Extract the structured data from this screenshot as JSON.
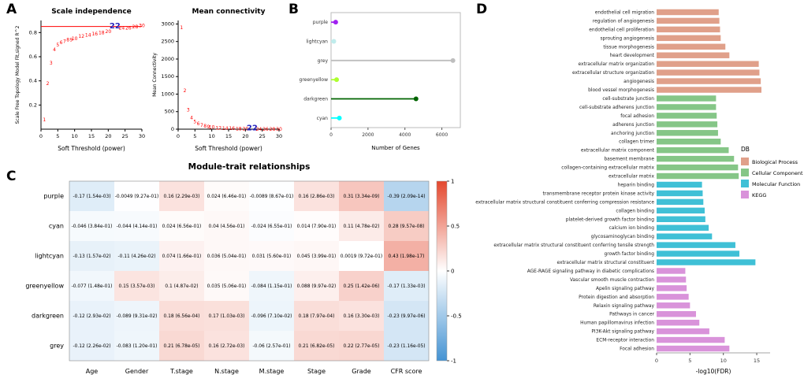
{
  "panels": {
    "a": "A",
    "b": "B",
    "c": "C",
    "d": "D"
  },
  "chart_data": [
    {
      "id": "scale_independence",
      "type": "scatter",
      "title": "Scale independence",
      "xlabel": "Soft Threshold (power)",
      "ylabel": "Scale Free Topology Model Fit,signed R^2",
      "xlim": [
        0,
        30
      ],
      "ylim": [
        0,
        0.9
      ],
      "xticks": [
        0,
        5,
        10,
        15,
        20,
        25,
        30
      ],
      "yticks": [
        0.2,
        0.4,
        0.6,
        0.8
      ],
      "x": [
        1,
        2,
        3,
        4,
        5,
        6,
        7,
        8,
        9,
        10,
        12,
        14,
        16,
        18,
        20,
        22,
        24,
        26,
        28,
        30
      ],
      "y": [
        0.08,
        0.38,
        0.55,
        0.66,
        0.7,
        0.72,
        0.73,
        0.74,
        0.74,
        0.75,
        0.77,
        0.78,
        0.79,
        0.8,
        0.81,
        0.85,
        0.84,
        0.84,
        0.85,
        0.86
      ],
      "point_color": "#FF0000",
      "highlight": 22,
      "highlight_color": "#2323BE",
      "hline": 0.85,
      "hline_color": "#FF0000"
    },
    {
      "id": "mean_connectivity",
      "type": "scatter",
      "title": "Mean connectivity",
      "xlabel": "Soft Threshold (power)",
      "ylabel": "Mean Connectivity",
      "xlim": [
        0,
        30
      ],
      "ylim": [
        0,
        3100
      ],
      "xticks": [
        0,
        5,
        10,
        15,
        20,
        25,
        30
      ],
      "yticks": [
        0,
        500,
        1000,
        1500,
        2000,
        2500,
        3000
      ],
      "x": [
        1,
        2,
        3,
        4,
        5,
        6,
        7,
        8,
        9,
        10,
        12,
        14,
        16,
        18,
        20,
        22,
        24,
        26,
        28,
        30
      ],
      "y": [
        2900,
        1100,
        550,
        330,
        220,
        160,
        120,
        95,
        75,
        60,
        42,
        30,
        22,
        17,
        13,
        12,
        8,
        6,
        5,
        4
      ],
      "point_color": "#FF0000",
      "highlight": 22,
      "highlight_color": "#2323BE",
      "hline": null,
      "hline_color": null
    },
    {
      "id": "module_gene_counts",
      "type": "dotplot",
      "xlabel": "Number of Genes",
      "xlim": [
        0,
        7000
      ],
      "xticks": [
        0,
        2000,
        4000,
        6000
      ],
      "categories": [
        "purple",
        "lightcyan",
        "grey",
        "greenyellow",
        "darkgreen",
        "cyan"
      ],
      "values": [
        250,
        150,
        6600,
        300,
        4600,
        450
      ],
      "colors": [
        "#A020F0",
        "#BFECEC",
        "#BEBEBE",
        "#ADFF2F",
        "#006400",
        "#00FFFF"
      ]
    },
    {
      "id": "module_trait_relationships",
      "type": "heatmap",
      "title": "Module-trait relationships",
      "rows": [
        "purple",
        "cyan",
        "lightcyan",
        "greenyellow",
        "darkgreen",
        "grey"
      ],
      "cols": [
        "Age",
        "Gender",
        "T.stage",
        "N.stage",
        "M.stage",
        "Stage",
        "Grade",
        "CFR score"
      ],
      "values": [
        [
          -0.17,
          -0.0049,
          0.16,
          0.024,
          -0.0089,
          0.16,
          0.31,
          -0.39
        ],
        [
          -0.046,
          -0.044,
          0.024,
          0.04,
          -0.024,
          0.014,
          0.11,
          0.28
        ],
        [
          -0.13,
          -0.11,
          0.074,
          0.036,
          0.031,
          0.045,
          0.0019,
          0.43
        ],
        [
          -0.077,
          0.15,
          0.1,
          0.035,
          -0.084,
          0.088,
          0.25,
          -0.17
        ],
        [
          -0.12,
          -0.089,
          0.18,
          0.17,
          -0.096,
          0.18,
          0.16,
          -0.23
        ],
        [
          -0.12,
          -0.083,
          0.21,
          0.16,
          -0.06,
          0.21,
          0.22,
          -0.23
        ]
      ],
      "pvalues": [
        [
          "1.54e-03",
          "9.27e-01",
          "2.29e-03",
          "6.46e-01",
          "8.67e-01",
          "2.86e-03",
          "3.34e-09",
          "2.09e-14"
        ],
        [
          "3.84e-01",
          "4.14e-01",
          "6.56e-01",
          "4.56e-01",
          "6.55e-01",
          "7.90e-01",
          "4.78e-02",
          "9.57e-08"
        ],
        [
          "1.57e-02",
          "4.26e-02",
          "1.66e-01",
          "5.04e-01",
          "5.60e-01",
          "3.99e-01",
          "9.72e-01",
          "1.98e-17"
        ],
        [
          "1.48e-01",
          "3.57e-03",
          "4.87e-02",
          "5.06e-01",
          "1.15e-01",
          "9.97e-02",
          "1.42e-06",
          "1.33e-03"
        ],
        [
          "2.93e-02",
          "9.31e-02",
          "6.56e-04",
          "1.03e-03",
          "7.10e-02",
          "7.97e-04",
          "3.30e-03",
          "9.97e-06"
        ],
        [
          "2.26e-02",
          "1.20e-01",
          "6.78e-05",
          "2.72e-03",
          "2.57e-01",
          "6.82e-05",
          "2.77e-05",
          "1.16e-05"
        ]
      ],
      "colorbar_ticks": [
        1,
        0.5,
        0,
        -0.5,
        -1
      ],
      "pos_color": "#E4482E",
      "neg_color": "#4493D3"
    },
    {
      "id": "enrichment",
      "type": "bar",
      "orientation": "horizontal",
      "xlabel": "-log10(FDR)",
      "xlim": [
        0,
        17
      ],
      "xticks": [
        0,
        5,
        10,
        15
      ],
      "legend_title": "DB",
      "groups": [
        {
          "name": "Biological Process",
          "color": "#E0A08A",
          "terms": [
            "endothelial cell migration",
            "regulation of angiogenesis",
            "endothelial cell proliferation",
            "sprouting angiogenesis",
            "tissue morphogenesis",
            "heart development",
            "extracellular matrix organization",
            "extracellular structure organization",
            "angiogenesis",
            "blood vessel morphogenesis"
          ],
          "values": [
            9.3,
            9.4,
            9.5,
            9.6,
            10.3,
            10.9,
            15.3,
            15.4,
            15.6,
            15.7
          ]
        },
        {
          "name": "Cellular Component",
          "color": "#85C687",
          "terms": [
            "cell-substrate junction",
            "cell-substrate adherens junction",
            "focal adhesion",
            "adherens junction",
            "anchoring junction",
            "collagen trimer",
            "extracellular matrix component",
            "basement membrane",
            "collagen-containing extracellular matrix",
            "extracellular matrix"
          ],
          "values": [
            8.9,
            8.9,
            9.0,
            9.1,
            9.2,
            9.6,
            10.8,
            11.6,
            12.2,
            12.3
          ]
        },
        {
          "name": "Molecular Function",
          "color": "#3FC0D6",
          "terms": [
            "heparin binding",
            "transmembrane receptor protein kinase activity",
            "extracellular matrix structural constituent conferring compression resistance",
            "collagen binding",
            "platelet-derived growth factor binding",
            "calcium ion binding",
            "glycosaminoglycan binding",
            "extracellular matrix structural constituent conferring tensile strength",
            "growth factor binding",
            "extracellular matrix structural constituent"
          ],
          "values": [
            6.8,
            6.9,
            7.0,
            7.2,
            7.3,
            7.8,
            8.3,
            11.8,
            12.4,
            14.8
          ]
        },
        {
          "name": "KEGG",
          "color": "#D993DA",
          "terms": [
            "AGE-RAGE signaling pathway in diabetic complications",
            "Vascular smooth muscle contraction",
            "Apelin signaling pathway",
            "Protein digestion and absorption",
            "Relaxin signaling pathway",
            "Pathways in cancer",
            "Human papillomavirus infection",
            "PI3K-Akt signaling pathway",
            "ECM-receptor interaction",
            "Focal adhesion"
          ],
          "values": [
            4.3,
            4.4,
            4.5,
            4.8,
            5.0,
            5.9,
            6.4,
            7.9,
            10.2,
            10.9
          ]
        }
      ]
    }
  ]
}
